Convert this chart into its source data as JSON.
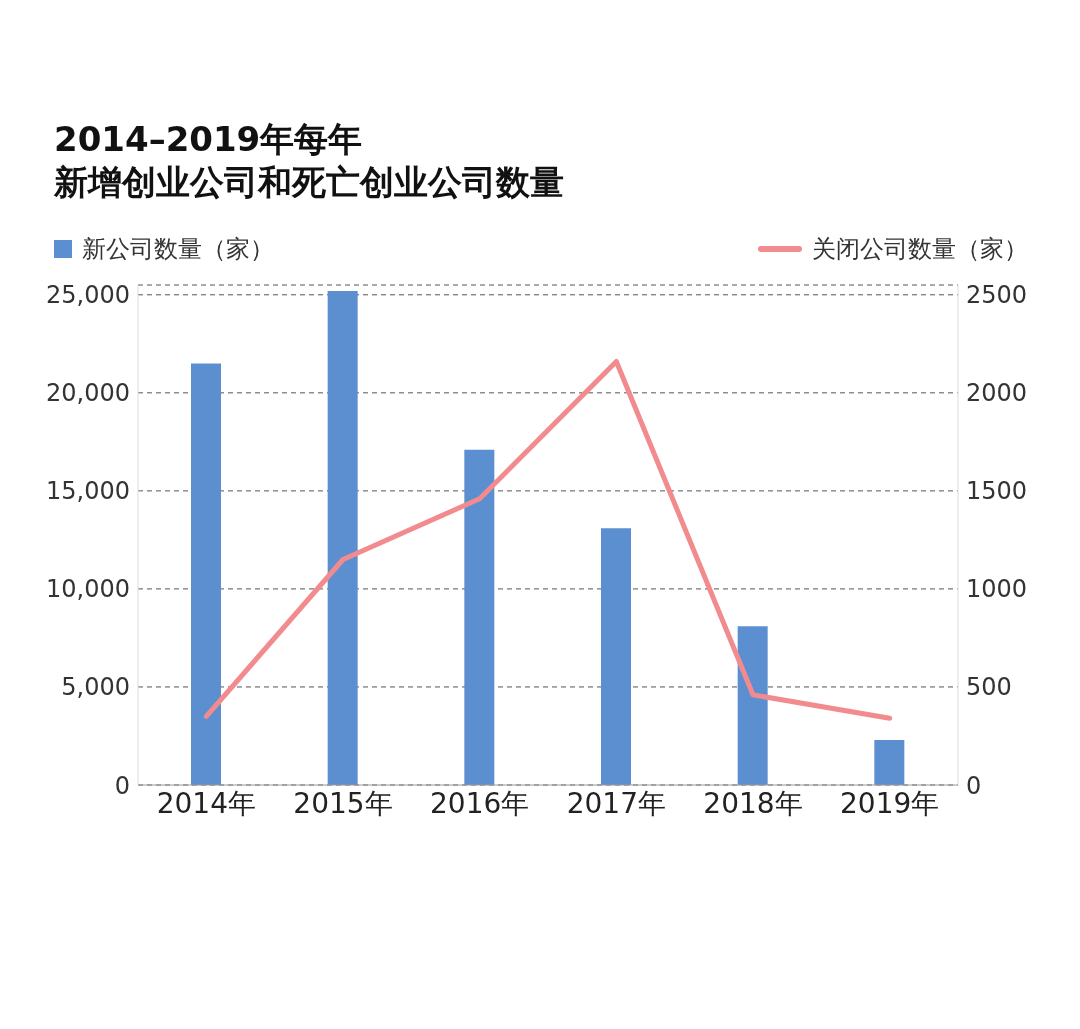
{
  "chart_data": {
    "type": "bar",
    "title": "2014–2019年每年",
    "subtitle": "新增创业公司和死亡创业公司数量",
    "categories": [
      "2014年",
      "2015年",
      "2016年",
      "2017年",
      "2018年",
      "2019年"
    ],
    "series": [
      {
        "name": "新公司数量（家）",
        "color": "#5b8fd0",
        "values": [
          21500,
          25200,
          17100,
          13100,
          8100,
          2300
        ]
      },
      {
        "name": "关闭公司数量（家）",
        "type": "line",
        "axis": "y2",
        "color": "#f28b8e",
        "values": [
          350,
          1150,
          1460,
          2160,
          460,
          340
        ]
      }
    ],
    "ylim": [
      0,
      25500
    ],
    "yticks": [
      0,
      {
        "value": 5000,
        "label": "5,000"
      },
      {
        "value": 10000,
        "label": "10,000"
      },
      {
        "value": 15000,
        "label": "15,000"
      },
      {
        "value": 20000,
        "label": "20,000"
      },
      {
        "value": 25000,
        "label": "25,000"
      }
    ],
    "y2lim": [
      0,
      2550
    ],
    "y2ticks": [
      0,
      500,
      1000,
      1500,
      2000,
      2500
    ],
    "grid": "y",
    "legend": "top",
    "marker": "none",
    "line_style": "solid"
  }
}
